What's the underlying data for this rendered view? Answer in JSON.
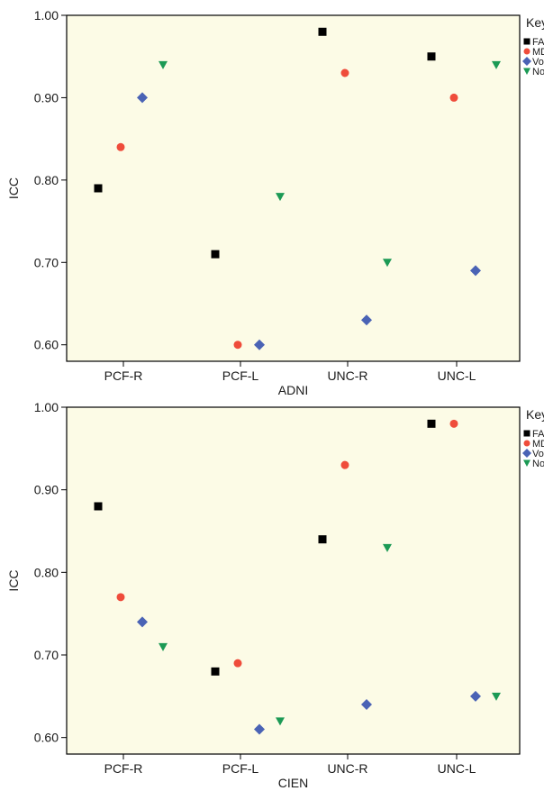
{
  "chart_data": [
    {
      "type": "scatter",
      "title": "",
      "xlabel": "ADNI",
      "ylabel": "ICC",
      "ylim": [
        0.58,
        1.0
      ],
      "yticks": [
        "0.60",
        "0.70",
        "0.80",
        "0.90",
        "1.00"
      ],
      "grid": false,
      "background": "#fcfbe6",
      "legend_placement": "right",
      "legend_title": "Key",
      "categories": [
        "PCF-R",
        "PCF-L",
        "UNC-R",
        "UNC-L"
      ],
      "series": [
        {
          "name": "FA",
          "marker": "square",
          "color": "#000000",
          "values": [
            0.79,
            0.71,
            0.98,
            0.95
          ]
        },
        {
          "name": "MD",
          "marker": "circle",
          "color": "#ef4c3b",
          "values": [
            0.84,
            0.6,
            0.93,
            0.9
          ]
        },
        {
          "name": "Vol",
          "marker": "diamond",
          "color": "#4a63b5",
          "values": [
            0.9,
            0.6,
            0.63,
            0.69
          ]
        },
        {
          "name": "No.",
          "marker": "triangle-down",
          "color": "#1c9a55",
          "values": [
            0.94,
            0.78,
            0.7,
            0.94
          ]
        }
      ]
    },
    {
      "type": "scatter",
      "title": "",
      "xlabel": "CIEN",
      "ylabel": "ICC",
      "ylim": [
        0.58,
        1.0
      ],
      "yticks": [
        "0.60",
        "0.70",
        "0.80",
        "0.90",
        "1.00"
      ],
      "grid": false,
      "background": "#fcfbe6",
      "legend_placement": "right",
      "legend_title": "Key",
      "categories": [
        "PCF-R",
        "PCF-L",
        "UNC-R",
        "UNC-L"
      ],
      "series": [
        {
          "name": "FA",
          "marker": "square",
          "color": "#000000",
          "values": [
            0.88,
            0.68,
            0.84,
            0.98
          ]
        },
        {
          "name": "MD",
          "marker": "circle",
          "color": "#ef4c3b",
          "values": [
            0.77,
            0.69,
            0.93,
            0.98
          ]
        },
        {
          "name": "Vol",
          "marker": "diamond",
          "color": "#4a63b5",
          "values": [
            0.74,
            0.61,
            0.64,
            0.65
          ]
        },
        {
          "name": "No.",
          "marker": "triangle-down",
          "color": "#1c9a55",
          "values": [
            0.71,
            0.62,
            0.83,
            0.65
          ]
        }
      ]
    }
  ]
}
